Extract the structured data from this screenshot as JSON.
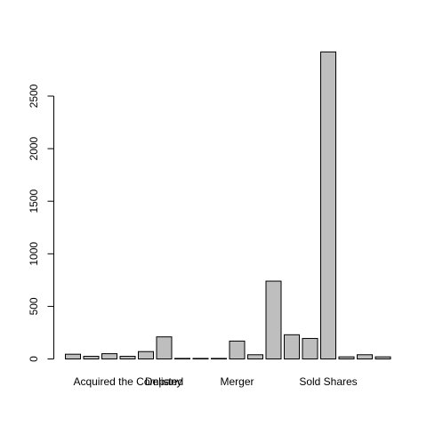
{
  "chart_data": {
    "type": "bar",
    "title": "",
    "xlabel": "",
    "ylabel": "",
    "ylim": [
      0,
      2950
    ],
    "y_ticks": [
      0,
      500,
      1000,
      1500,
      2000,
      2500
    ],
    "y_tick_labels": [
      "0",
      "500",
      "1000",
      "1500",
      "2000",
      "2500"
    ],
    "x_labels": [
      {
        "text": "Acquired the Company",
        "bar_index": 3
      },
      {
        "text": "Delisted",
        "bar_index": 5
      },
      {
        "text": "Merger",
        "bar_index": 9
      },
      {
        "text": "Sold Shares",
        "bar_index": 14
      }
    ],
    "values": [
      45,
      25,
      50,
      25,
      70,
      210,
      5,
      5,
      5,
      170,
      40,
      740,
      230,
      195,
      2920,
      20,
      40,
      20
    ],
    "bar_color": "#bebebe",
    "grid": false,
    "legend": "none"
  }
}
